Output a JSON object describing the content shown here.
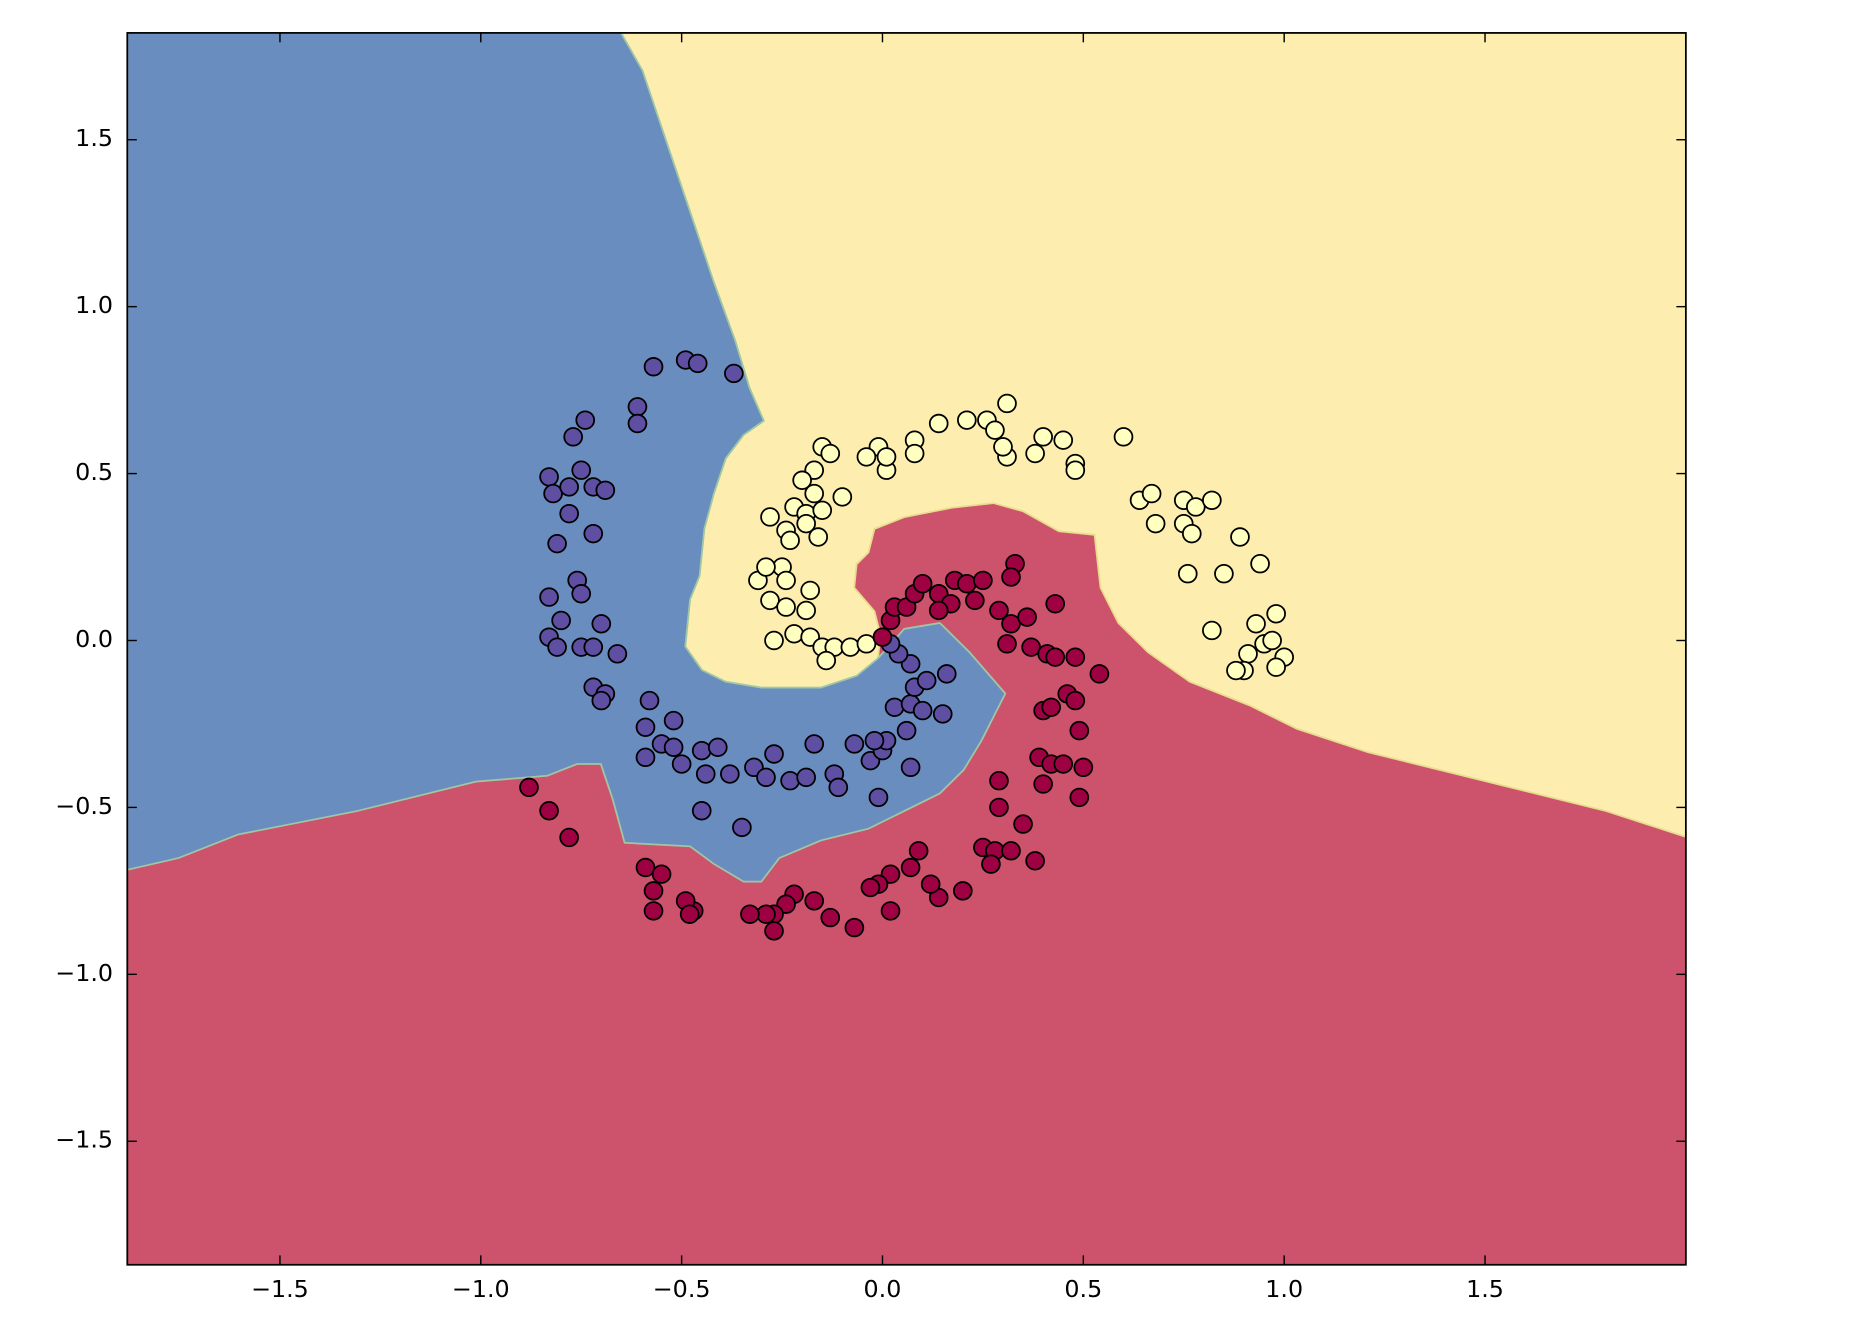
{
  "chart_data": {
    "type": "scatter",
    "xlim": [
      -1.88,
      2.0
    ],
    "ylim": [
      -1.87,
      1.82
    ],
    "xticks": [
      {
        "value": -1.5,
        "label": "−1.5"
      },
      {
        "value": -1.0,
        "label": "−1.0"
      },
      {
        "value": -0.5,
        "label": "−0.5"
      },
      {
        "value": 0,
        "label": "0.0"
      },
      0.5,
      {
        "value": 1.0,
        "label": "1.0"
      },
      1.5
    ],
    "yticks": [
      {
        "value": -1.5,
        "label": "−1.5"
      },
      {
        "value": -1.0,
        "label": "−1.0"
      },
      {
        "value": -0.5,
        "label": "−0.5"
      },
      {
        "value": 0,
        "label": "0.0"
      },
      0.5,
      {
        "value": 1.0,
        "label": "1.0"
      },
      1.5
    ],
    "series": [
      {
        "color": "#5e4fa2",
        "x": [
          -0.57,
          -0.49,
          -0.46,
          -0.37,
          -0.61,
          -0.61,
          -0.74,
          -0.77,
          -0.75,
          -0.83,
          -0.82,
          -0.78,
          -0.72,
          -0.69,
          -0.78,
          -0.72,
          -0.81,
          -0.76,
          -0.75,
          -0.83,
          -0.8,
          -0.7,
          -0.83,
          -0.81,
          -0.75,
          -0.72,
          -0.66,
          -0.72,
          -0.69,
          -0.7,
          -0.58,
          -0.52,
          -0.59,
          -0.55,
          -0.59,
          -0.52,
          -0.5,
          -0.45,
          -0.41,
          -0.44,
          -0.38,
          -0.45,
          -0.35,
          -0.32,
          -0.29,
          -0.27,
          -0.23,
          -0.17,
          -0.19,
          -0.12,
          -0.11,
          -0.07,
          -0.03,
          0.0,
          0.01,
          -0.02,
          -0.01,
          0.07,
          0.06,
          0.03,
          0.07,
          0.1,
          0.15,
          0.08,
          0.11,
          0.16,
          0.07,
          0.04,
          0.02
        ],
        "y": [
          0.82,
          0.84,
          0.83,
          0.8,
          0.7,
          0.65,
          0.66,
          0.61,
          0.51,
          0.49,
          0.44,
          0.46,
          0.46,
          0.45,
          0.38,
          0.32,
          0.29,
          0.18,
          0.14,
          0.13,
          0.06,
          0.05,
          0.01,
          -0.02,
          -0.02,
          -0.02,
          -0.04,
          -0.14,
          -0.16,
          -0.18,
          -0.18,
          -0.24,
          -0.26,
          -0.31,
          -0.35,
          -0.32,
          -0.37,
          -0.33,
          -0.32,
          -0.4,
          -0.4,
          -0.51,
          -0.56,
          -0.38,
          -0.41,
          -0.34,
          -0.42,
          -0.31,
          -0.41,
          -0.4,
          -0.44,
          -0.31,
          -0.36,
          -0.33,
          -0.3,
          -0.3,
          -0.47,
          -0.38,
          -0.27,
          -0.2,
          -0.19,
          -0.21,
          -0.22,
          -0.14,
          -0.12,
          -0.1,
          -0.07,
          -0.04,
          -0.01
        ]
      },
      {
        "color": "#ffffbf",
        "x": [
          0.31,
          0.26,
          0.21,
          0.14,
          0.08,
          0.08,
          -0.01,
          -0.04,
          0.01,
          0.01,
          -0.15,
          -0.13,
          -0.17,
          -0.2,
          -0.22,
          -0.17,
          -0.19,
          -0.1,
          -0.15,
          -0.28,
          -0.24,
          -0.23,
          -0.16,
          -0.19,
          -0.31,
          -0.25,
          -0.29,
          -0.24,
          -0.18,
          -0.28,
          -0.24,
          -0.19,
          -0.27,
          -0.22,
          -0.18,
          -0.15,
          -0.12,
          -0.14,
          -0.08,
          -0.04,
          0.28,
          0.31,
          0.3,
          0.38,
          0.4,
          0.45,
          0.48,
          0.48,
          0.6,
          0.64,
          0.67,
          0.68,
          0.75,
          0.78,
          0.82,
          0.75,
          0.77,
          0.89,
          0.94,
          0.76,
          0.85,
          0.82,
          0.98,
          0.93,
          0.95,
          0.97,
          0.91,
          0.9,
          1.0,
          0.98,
          0.88
        ],
        "y": [
          0.71,
          0.66,
          0.66,
          0.65,
          0.6,
          0.56,
          0.58,
          0.55,
          0.51,
          0.55,
          0.58,
          0.56,
          0.51,
          0.48,
          0.4,
          0.44,
          0.38,
          0.43,
          0.39,
          0.37,
          0.33,
          0.3,
          0.31,
          0.35,
          0.18,
          0.22,
          0.22,
          0.18,
          0.15,
          0.12,
          0.1,
          0.09,
          0.0,
          0.02,
          0.01,
          -0.02,
          -0.02,
          -0.06,
          -0.02,
          -0.01,
          0.63,
          0.55,
          0.58,
          0.56,
          0.61,
          0.6,
          0.53,
          0.51,
          0.61,
          0.42,
          0.44,
          0.35,
          0.42,
          0.4,
          0.42,
          0.35,
          0.32,
          0.31,
          0.23,
          0.2,
          0.2,
          0.03,
          0.08,
          0.05,
          -0.01,
          0.0,
          -0.04,
          -0.09,
          -0.05,
          -0.08,
          -0.09
        ]
      },
      {
        "color": "#9e0142",
        "x": [
          0.0,
          0.02,
          0.03,
          0.06,
          0.08,
          0.1,
          0.14,
          0.18,
          0.21,
          0.25,
          0.33,
          0.32,
          0.29,
          0.23,
          0.17,
          0.14,
          0.32,
          0.36,
          0.43,
          0.31,
          0.37,
          0.41,
          0.48,
          0.43,
          0.54,
          0.46,
          0.48,
          0.4,
          0.42,
          0.49,
          0.39,
          0.4,
          0.42,
          0.45,
          0.5,
          0.49,
          0.29,
          0.29,
          0.35,
          0.25,
          0.28,
          0.32,
          0.38,
          0.27,
          0.2,
          0.14,
          0.12,
          0.09,
          0.07,
          0.02,
          -0.01,
          -0.03,
          0.02,
          -0.07,
          -0.13,
          -0.17,
          -0.22,
          -0.24,
          -0.27,
          -0.27,
          -0.29,
          -0.33,
          -0.47,
          -0.49,
          -0.48,
          -0.57,
          -0.57,
          -0.59,
          -0.55,
          -0.78,
          -0.83,
          -0.88
        ],
        "y": [
          0.01,
          0.06,
          0.1,
          0.1,
          0.14,
          0.17,
          0.14,
          0.18,
          0.17,
          0.18,
          0.23,
          0.19,
          0.09,
          0.12,
          0.11,
          0.09,
          0.05,
          0.07,
          0.11,
          -0.01,
          -0.02,
          -0.04,
          -0.05,
          -0.05,
          -0.1,
          -0.16,
          -0.18,
          -0.21,
          -0.2,
          -0.27,
          -0.35,
          -0.43,
          -0.37,
          -0.37,
          -0.38,
          -0.47,
          -0.42,
          -0.5,
          -0.55,
          -0.62,
          -0.63,
          -0.63,
          -0.66,
          -0.67,
          -0.75,
          -0.77,
          -0.73,
          -0.63,
          -0.68,
          -0.7,
          -0.73,
          -0.74,
          -0.81,
          -0.86,
          -0.83,
          -0.78,
          -0.76,
          -0.79,
          -0.82,
          -0.87,
          -0.82,
          -0.82,
          -0.81,
          -0.78,
          -0.82,
          -0.81,
          -0.75,
          -0.68,
          -0.7,
          -0.59,
          -0.51,
          -0.44
        ]
      }
    ]
  }
}
